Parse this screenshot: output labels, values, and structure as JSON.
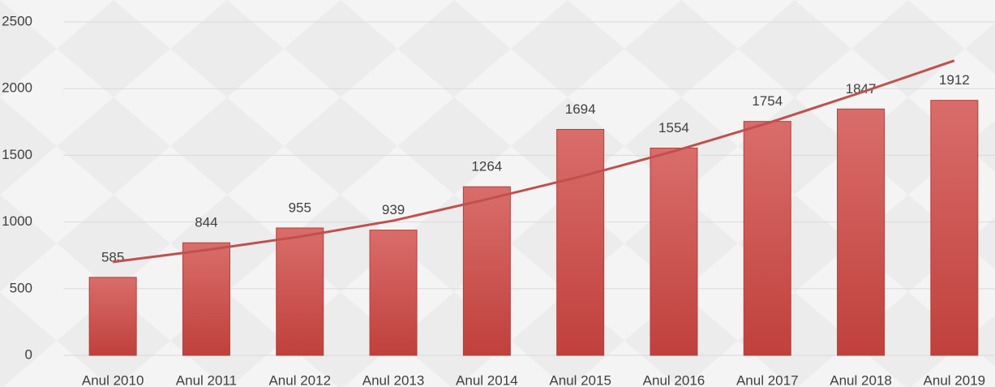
{
  "chart_data": {
    "type": "bar",
    "categories": [
      "Anul 2010",
      "Anul 2011",
      "Anul 2012",
      "Anul 2013",
      "Anul 2014",
      "Anul 2015",
      "Anul 2016",
      "Anul 2017",
      "Anul 2018",
      "Anul 2019"
    ],
    "values": [
      585,
      844,
      955,
      939,
      1264,
      1694,
      1554,
      1754,
      1847,
      1912
    ],
    "color": "#c0504d",
    "ylim": [
      0,
      2500
    ],
    "yticks": [
      0,
      500,
      1000,
      1500,
      2000,
      2500
    ],
    "grid": true,
    "trendline": {
      "color": "#c0504d",
      "values": [
        700,
        790,
        890,
        1010,
        1170,
        1340,
        1530,
        1740,
        1970,
        2210
      ]
    }
  }
}
